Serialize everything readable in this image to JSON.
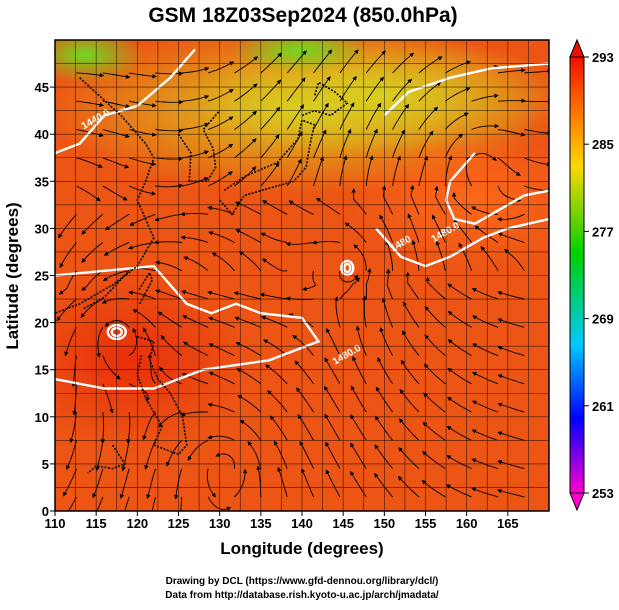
{
  "chart_data": {
    "type": "heatmap",
    "title": "GSM 18Z03Sep2024 (850.0hPa)",
    "xlabel": "Longitude (degrees)",
    "ylabel": "Latitude  (degrees)",
    "xlim": [
      110,
      170
    ],
    "ylim": [
      0,
      50
    ],
    "x_ticks": [
      110,
      115,
      120,
      125,
      130,
      135,
      140,
      145,
      150,
      155,
      160,
      165
    ],
    "y_ticks": [
      0,
      5,
      10,
      15,
      20,
      25,
      30,
      35,
      40,
      45
    ],
    "grid": true,
    "colorbar": {
      "location": "right",
      "min": 253,
      "max": 293,
      "ticks": [
        253,
        261,
        269,
        277,
        285,
        293
      ],
      "extend": "both",
      "colors": [
        "#ff00cc",
        "#0000ff",
        "#00c8ff",
        "#00d000",
        "#ffd800",
        "#ff8000",
        "#f01000"
      ]
    },
    "contour_labels": [
      "1440.0",
      "1480.0",
      "1480",
      "1480.0"
    ],
    "shaded_field": "temperature at 850 hPa",
    "streamlines": "wind at 850 hPa"
  },
  "credits": {
    "line1": "Drawing by DCL (https://www.gfd-dennou.org/library/dcl/)",
    "line2": "Data from http://database.rish.kyoto-u.ac.jp/arch/jmadata/"
  },
  "colors": {
    "warm": "#ee4a10",
    "mid": "#f07818",
    "cool": "#e8b818",
    "cold": "#78d820",
    "grid": "#000000",
    "contour": "#ffffff"
  }
}
